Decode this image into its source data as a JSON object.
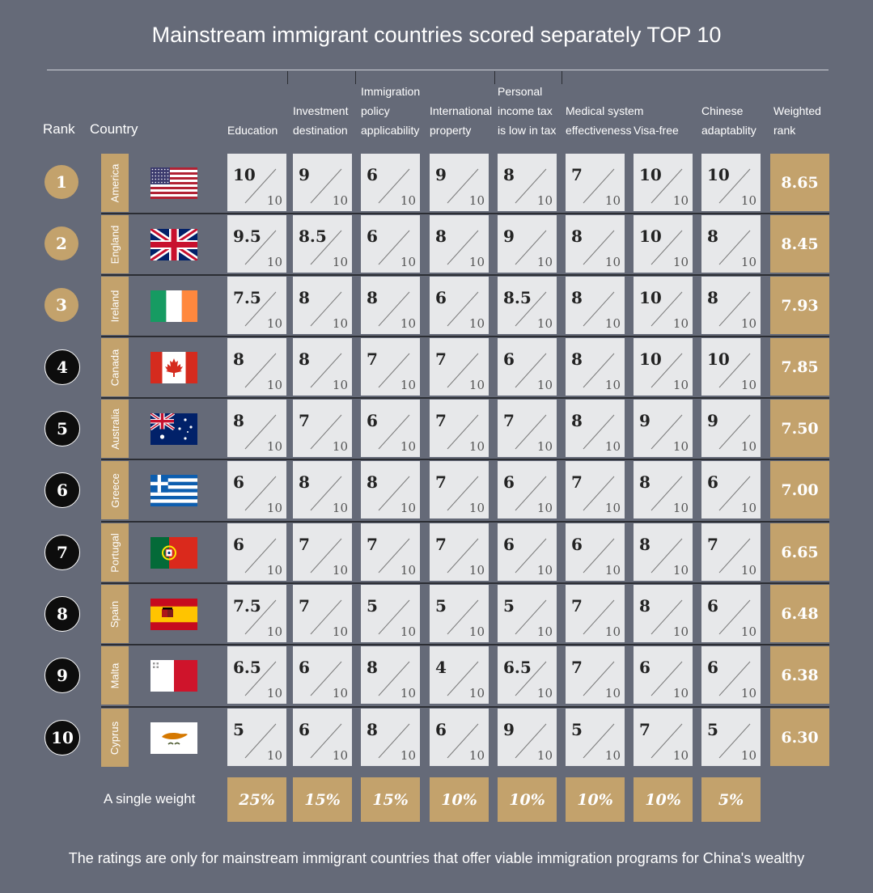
{
  "title": "Mainstream immigrant countries scored separately TOP 10",
  "headers": {
    "rank": "Rank",
    "country": "Country",
    "columns": [
      {
        "lines": [
          "Education"
        ]
      },
      {
        "lines": [
          "Investment",
          "destination"
        ]
      },
      {
        "lines": [
          "Immigration",
          "policy",
          "applicability"
        ]
      },
      {
        "lines": [
          "International",
          "property"
        ]
      },
      {
        "lines": [
          "Personal",
          "income tax",
          "is low in tax"
        ]
      },
      {
        "lines": [
          "Medical system",
          "effectiveness"
        ]
      },
      {
        "lines": [
          "Visa-free"
        ]
      },
      {
        "lines": [
          "Chinese",
          "adaptablity"
        ]
      },
      {
        "lines": [
          "Weighted",
          "rank"
        ]
      }
    ]
  },
  "score_max_label": "10",
  "weights_label": "A single weight",
  "footnote": "The ratings are only for mainstream immigrant countries that offer viable immigration programs for China's wealthy",
  "colors": {
    "background": "#656a78",
    "gold": "#c3a26c",
    "cell": "#e7e8ea",
    "black_circle": "#0d0d0d"
  },
  "chart_data": {
    "type": "table",
    "title": "Mainstream immigrant countries scored separately TOP 10",
    "columns": [
      "Education",
      "Investment destination",
      "Immigration policy applicability",
      "International property",
      "Personal income tax is low in tax",
      "Medical system effectiveness",
      "Visa-free",
      "Chinese adaptablity"
    ],
    "weights": [
      "25%",
      "15%",
      "15%",
      "10%",
      "10%",
      "10%",
      "10%",
      "5%"
    ],
    "rows": [
      {
        "rank": "1",
        "country": "America",
        "flag": "usa-flag-icon",
        "medal": "gold",
        "scores": [
          "10",
          "9",
          "6",
          "9",
          "8",
          "7",
          "10",
          "10"
        ],
        "weighted": "8.65"
      },
      {
        "rank": "2",
        "country": "England",
        "flag": "uk-flag-icon",
        "medal": "gold",
        "scores": [
          "9.5",
          "8.5",
          "6",
          "8",
          "9",
          "8",
          "10",
          "8"
        ],
        "weighted": "8.45"
      },
      {
        "rank": "3",
        "country": "Ireland",
        "flag": "ireland-flag-icon",
        "medal": "gold",
        "scores": [
          "7.5",
          "8",
          "8",
          "6",
          "8.5",
          "8",
          "10",
          "8"
        ],
        "weighted": "7.93"
      },
      {
        "rank": "4",
        "country": "Canada",
        "flag": "canada-flag-icon",
        "medal": "black",
        "scores": [
          "8",
          "8",
          "7",
          "7",
          "6",
          "8",
          "10",
          "10"
        ],
        "weighted": "7.85"
      },
      {
        "rank": "5",
        "country": "Australia",
        "flag": "australia-flag-icon",
        "medal": "black",
        "scores": [
          "8",
          "7",
          "6",
          "7",
          "7",
          "8",
          "9",
          "9"
        ],
        "weighted": "7.50"
      },
      {
        "rank": "6",
        "country": "Greece",
        "flag": "greece-flag-icon",
        "medal": "black",
        "scores": [
          "6",
          "8",
          "8",
          "7",
          "6",
          "7",
          "8",
          "6"
        ],
        "weighted": "7.00"
      },
      {
        "rank": "7",
        "country": "Portugal",
        "flag": "portugal-flag-icon",
        "medal": "black",
        "scores": [
          "6",
          "7",
          "7",
          "7",
          "6",
          "6",
          "8",
          "7"
        ],
        "weighted": "6.65"
      },
      {
        "rank": "8",
        "country": "Spain",
        "flag": "spain-flag-icon",
        "medal": "black",
        "scores": [
          "7.5",
          "7",
          "5",
          "5",
          "5",
          "7",
          "8",
          "6"
        ],
        "weighted": "6.48"
      },
      {
        "rank": "9",
        "country": "Malta",
        "flag": "malta-flag-icon",
        "medal": "black",
        "scores": [
          "6.5",
          "6",
          "8",
          "4",
          "6.5",
          "7",
          "6",
          "6"
        ],
        "weighted": "6.38"
      },
      {
        "rank": "10",
        "country": "Cyprus",
        "flag": "cyprus-flag-icon",
        "medal": "black",
        "scores": [
          "5",
          "6",
          "8",
          "6",
          "9",
          "5",
          "7",
          "5"
        ],
        "weighted": "6.30"
      }
    ]
  }
}
